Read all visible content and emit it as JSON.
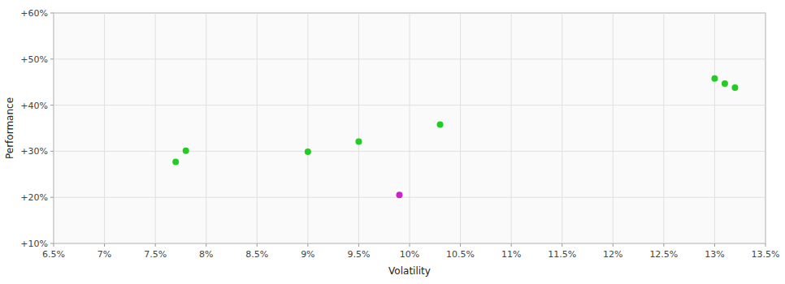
{
  "chart_data": {
    "type": "scatter",
    "xlabel": "Volatility",
    "ylabel": "Performance",
    "xlim": [
      0.065,
      0.135
    ],
    "ylim": [
      0.1,
      0.6
    ],
    "xticks": [
      {
        "value": 0.065,
        "label": "6.5%"
      },
      {
        "value": 0.07,
        "label": "7%"
      },
      {
        "value": 0.075,
        "label": "7.5%"
      },
      {
        "value": 0.08,
        "label": "8%"
      },
      {
        "value": 0.085,
        "label": "8.5%"
      },
      {
        "value": 0.09,
        "label": "9%"
      },
      {
        "value": 0.095,
        "label": "9.5%"
      },
      {
        "value": 0.1,
        "label": "10%"
      },
      {
        "value": 0.105,
        "label": "10.5%"
      },
      {
        "value": 0.11,
        "label": "11%"
      },
      {
        "value": 0.115,
        "label": "11.5%"
      },
      {
        "value": 0.12,
        "label": "12%"
      },
      {
        "value": 0.125,
        "label": "12.5%"
      },
      {
        "value": 0.13,
        "label": "13%"
      },
      {
        "value": 0.135,
        "label": "13.5%"
      }
    ],
    "yticks": [
      {
        "value": 0.1,
        "label": "+10%"
      },
      {
        "value": 0.2,
        "label": "+20%"
      },
      {
        "value": 0.3,
        "label": "+30%"
      },
      {
        "value": 0.4,
        "label": "+40%"
      },
      {
        "value": 0.5,
        "label": "+50%"
      },
      {
        "value": 0.6,
        "label": "+60%"
      }
    ],
    "grid": true,
    "series": [
      {
        "color": "#22cc22",
        "x": [
          0.078,
          0.077,
          0.09,
          0.095,
          0.103,
          0.13,
          0.131,
          0.132
        ],
        "values": [
          0.301,
          0.277,
          0.299,
          0.321,
          0.358,
          0.458,
          0.447,
          0.438
        ]
      },
      {
        "color": "#cc22cc",
        "x": [
          0.099
        ],
        "values": [
          0.205
        ]
      }
    ]
  }
}
